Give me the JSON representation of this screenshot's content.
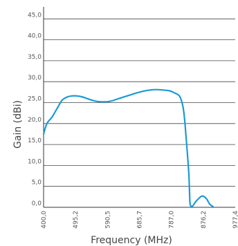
{
  "chart_data": {
    "type": "line",
    "title": "",
    "xlabel": "Frequency (MHz)",
    "ylabel": "Gain (dBi)",
    "x_ticks": [
      "400,0",
      "495,2",
      "590,5",
      "685,7",
      "787,0",
      "876,2",
      "977,4"
    ],
    "y_ticks": [
      "0,0",
      "5,0",
      "10,0",
      "15,0",
      "20,0",
      "25,0",
      "30,0",
      "35,0",
      "40,0",
      "45,0"
    ],
    "xlim": [
      400,
      977.4
    ],
    "ylim": [
      0,
      48
    ],
    "grid": "horizontal",
    "color": "#1a9ad6",
    "series": [
      {
        "x": [
          400,
          410,
          425,
          440,
          455,
          470,
          485,
          500,
          515,
          530,
          545,
          560,
          575,
          590,
          605,
          620,
          640,
          660,
          680,
          700,
          720,
          740,
          760,
          780,
          795,
          810,
          820,
          826,
          831,
          835,
          838,
          840,
          841,
          843,
          846,
          850,
          860,
          875,
          885,
          893,
          900,
          910
        ],
        "y": [
          17.5,
          20,
          21.5,
          23.5,
          25.5,
          26.3,
          26.6,
          26.6,
          26.4,
          26.0,
          25.6,
          25.3,
          25.2,
          25.2,
          25.4,
          25.8,
          26.3,
          26.8,
          27.3,
          27.7,
          28.0,
          28.1,
          28.0,
          27.8,
          27.3,
          26.5,
          24.0,
          20.0,
          15.0,
          11.0,
          7.5,
          3.0,
          1.0,
          0.4,
          0.2,
          0.4,
          1.5,
          2.6,
          2.5,
          1.8,
          0.8,
          0.2
        ]
      }
    ]
  }
}
